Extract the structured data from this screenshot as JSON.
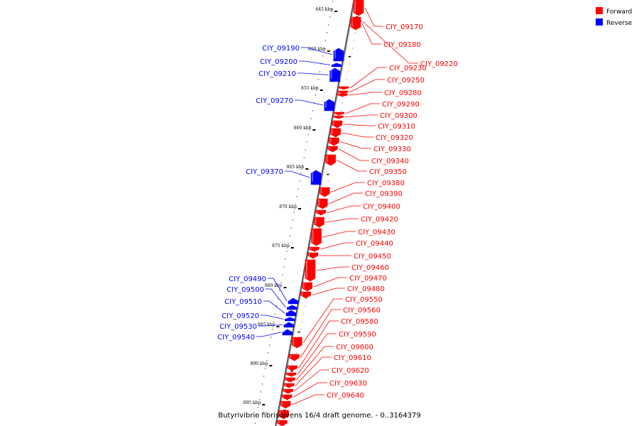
{
  "caption": "Butyrivibrio fibrisolvens 16/4 draft genome. - 0..3164379",
  "legend": [
    {
      "label": "Forward",
      "color": "#ff0000"
    },
    {
      "label": "Reverse",
      "color": "#0000ff"
    }
  ],
  "colors": {
    "forward": "#ff0000",
    "reverse": "#0000ff",
    "backbone": "#888888"
  },
  "kbp_ticks": [
    "845 kbp",
    "850 kbp",
    "855 kbp",
    "860 kbp",
    "865 kbp",
    "870 kbp",
    "875 kbp",
    "880 kbp",
    "885 kbp",
    "890 kbp",
    "895 kbp"
  ],
  "forward_genes": [
    "CIY_09170",
    "CIY_09180",
    "CIY_09220",
    "CIY_09230",
    "CIY_09250",
    "CIY_09280",
    "CIY_09290",
    "CIY_09300",
    "CIY_09310",
    "CIY_09320",
    "CIY_09330",
    "CIY_09340",
    "CIY_09350",
    "CIY_09380",
    "CIY_09390",
    "CIY_09400",
    "CIY_09420",
    "CIY_09430",
    "CIY_09440",
    "CIY_09450",
    "CIY_09460",
    "CIY_09470",
    "CIY_09480",
    "CIY_09550",
    "CIY_09560",
    "CIY_09580",
    "CIY_09590",
    "CIY_09600",
    "CIY_09610",
    "CIY_09620",
    "CIY_09630",
    "CIY_09640"
  ],
  "reverse_genes": [
    "CIY_09190",
    "CIY_09200",
    "CIY_09210",
    "CIY_09270",
    "CIY_09370",
    "CIY_09490",
    "CIY_09500",
    "CIY_09510",
    "CIY_09520",
    "CIY_09530",
    "CIY_09540"
  ]
}
